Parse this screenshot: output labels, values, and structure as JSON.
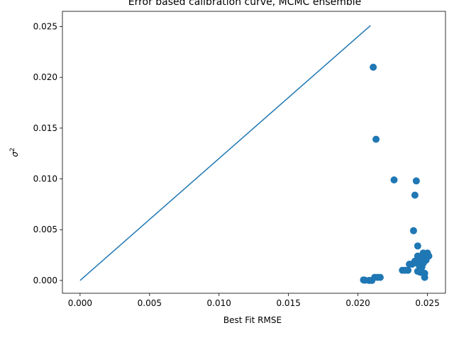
{
  "chart_data": {
    "type": "scatter",
    "title": "Error based calibration curve, MCMC ensemble",
    "xlabel": "Best Fit RMSE",
    "ylabel_base": "σ",
    "ylabel_sup": "2",
    "xlim": [
      -0.00127,
      0.0263
    ],
    "ylim": [
      -0.00126,
      0.0265
    ],
    "x_ticks": [
      {
        "value": 0.0,
        "label": "0.000"
      },
      {
        "value": 0.005,
        "label": "0.005"
      },
      {
        "value": 0.01,
        "label": "0.010"
      },
      {
        "value": 0.015,
        "label": "0.015"
      },
      {
        "value": 0.02,
        "label": "0.020"
      },
      {
        "value": 0.025,
        "label": "0.025"
      }
    ],
    "y_ticks": [
      {
        "value": 0.0,
        "label": "0.000"
      },
      {
        "value": 0.005,
        "label": "0.005"
      },
      {
        "value": 0.01,
        "label": "0.010"
      },
      {
        "value": 0.015,
        "label": "0.015"
      },
      {
        "value": 0.02,
        "label": "0.020"
      },
      {
        "value": 0.025,
        "label": "0.025"
      }
    ],
    "grid": false,
    "color": "#1f77b4",
    "line": {
      "x": [
        0.0,
        0.0209
      ],
      "y": [
        0.0,
        0.0251
      ]
    },
    "points": [
      {
        "x": 0.0211,
        "y": 0.021
      },
      {
        "x": 0.0213,
        "y": 0.0139
      },
      {
        "x": 0.0226,
        "y": 0.0099
      },
      {
        "x": 0.0242,
        "y": 0.0098
      },
      {
        "x": 0.0241,
        "y": 0.0084
      },
      {
        "x": 0.024,
        "y": 0.0049
      },
      {
        "x": 0.0243,
        "y": 0.0034
      },
      {
        "x": 0.0204,
        "y": 5e-05
      },
      {
        "x": 0.0205,
        "y": 2e-05
      },
      {
        "x": 0.0208,
        "y": 0.0
      },
      {
        "x": 0.021,
        "y": 0.0
      },
      {
        "x": 0.0212,
        "y": 0.0003
      },
      {
        "x": 0.0214,
        "y": 0.0003
      },
      {
        "x": 0.0216,
        "y": 0.0003
      },
      {
        "x": 0.0232,
        "y": 0.001
      },
      {
        "x": 0.0234,
        "y": 0.001
      },
      {
        "x": 0.0236,
        "y": 0.001
      },
      {
        "x": 0.0237,
        "y": 0.0016
      },
      {
        "x": 0.0239,
        "y": 0.0016
      },
      {
        "x": 0.024,
        "y": 0.0017
      },
      {
        "x": 0.0241,
        "y": 0.0019
      },
      {
        "x": 0.0242,
        "y": 0.0018
      },
      {
        "x": 0.0243,
        "y": 0.0024
      },
      {
        "x": 0.0243,
        "y": 0.0009
      },
      {
        "x": 0.0244,
        "y": 0.0021
      },
      {
        "x": 0.0244,
        "y": 0.0015
      },
      {
        "x": 0.0245,
        "y": 0.0022
      },
      {
        "x": 0.0245,
        "y": 0.0008
      },
      {
        "x": 0.0246,
        "y": 0.0013
      },
      {
        "x": 0.0246,
        "y": 0.0019
      },
      {
        "x": 0.0247,
        "y": 0.0027
      },
      {
        "x": 0.0247,
        "y": 0.0017
      },
      {
        "x": 0.0248,
        "y": 0.0025
      },
      {
        "x": 0.0248,
        "y": 0.0007
      },
      {
        "x": 0.0248,
        "y": 0.0003
      },
      {
        "x": 0.0249,
        "y": 0.002
      },
      {
        "x": 0.025,
        "y": 0.0027
      },
      {
        "x": 0.0251,
        "y": 0.0024
      }
    ]
  }
}
